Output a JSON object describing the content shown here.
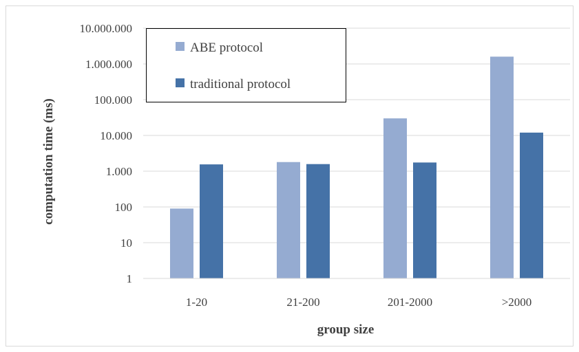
{
  "chart_data": {
    "type": "bar",
    "categories": [
      "1-20",
      "21-200",
      "201-2000",
      ">2000"
    ],
    "series": [
      {
        "name": "ABE protocol",
        "color": "#95abd1",
        "values": [
          90,
          1800,
          30000,
          1600000
        ]
      },
      {
        "name": "traditional protocol",
        "color": "#4572a7",
        "values": [
          1550,
          1580,
          1750,
          12000
        ]
      }
    ],
    "xlabel": "group size",
    "ylabel": "computation time (ms)",
    "yscale": "log",
    "ylim": [
      1,
      10000000
    ],
    "yticks": [
      1,
      10,
      100,
      1000,
      10000,
      100000,
      1000000,
      10000000
    ],
    "ytick_labels": [
      "1",
      "10",
      "100",
      "1.000",
      "10.000",
      "100.000",
      "1.000.000",
      "10.000.000"
    ],
    "grid": true,
    "legend_position": "top-left"
  }
}
